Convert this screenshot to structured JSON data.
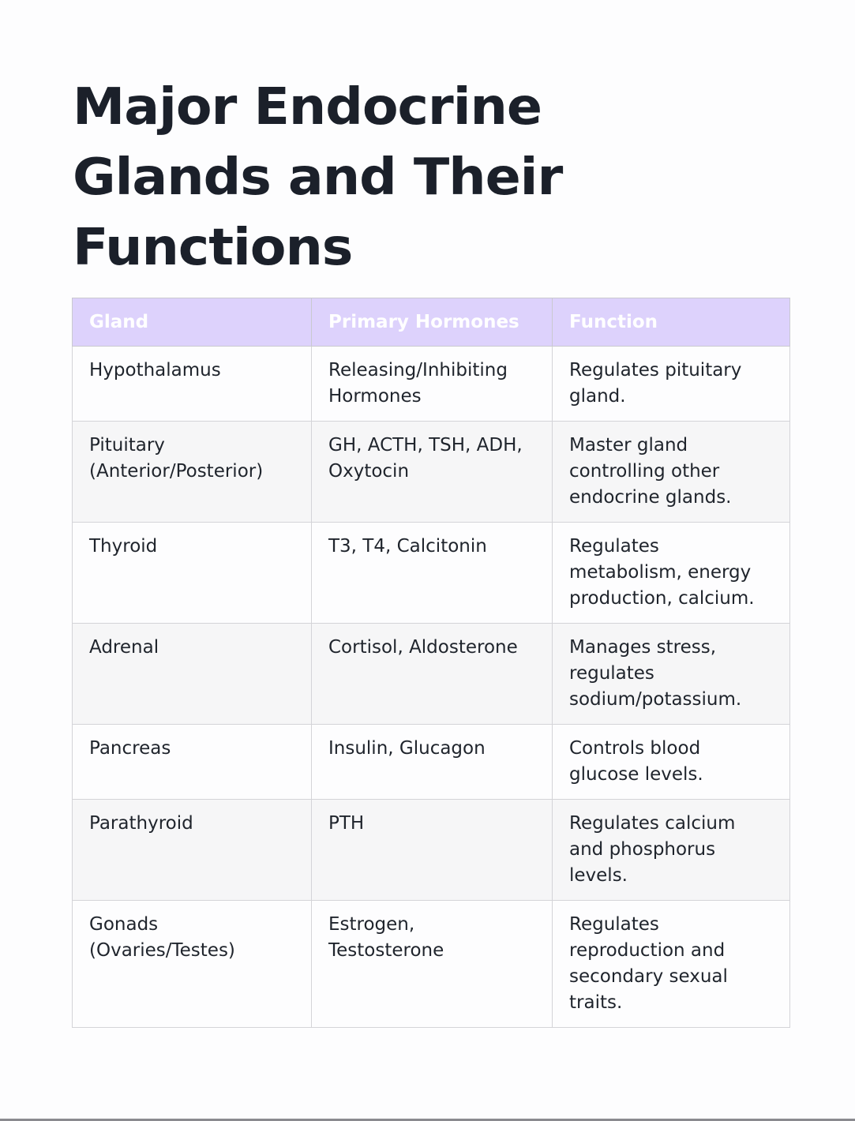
{
  "title": "Major Endocrine Glands and Their Functions",
  "table": {
    "headers": [
      "Gland",
      "Primary Hormones",
      "Function"
    ],
    "rows": [
      [
        "Hypothalamus",
        "Releasing/Inhibiting Hormones",
        "Regulates pituitary gland."
      ],
      [
        "Pituitary (Anterior/Posterior)",
        "GH, ACTH, TSH, ADH, Oxytocin",
        "Master gland controlling other endocrine glands."
      ],
      [
        "Thyroid",
        "T3, T4, Calcitonin",
        "Regulates metabolism, energy production, calcium."
      ],
      [
        "Adrenal",
        "Cortisol, Aldosterone",
        "Manages stress, regulates sodium/potassium."
      ],
      [
        "Pancreas",
        "Insulin, Glucagon",
        "Controls blood glucose levels."
      ],
      [
        "Parathyroid",
        "PTH",
        "Regulates calcium and phosphorus levels."
      ],
      [
        "Gonads (Ovaries/Testes)",
        "Estrogen, Testosterone",
        "Regulates reproduction and secondary sexual traits."
      ]
    ]
  },
  "colors": {
    "header_bg": "#ddd2fc",
    "header_text": "#ffffff",
    "stripe_bg": "#f6f6f7",
    "title_text": "#1b202a"
  }
}
